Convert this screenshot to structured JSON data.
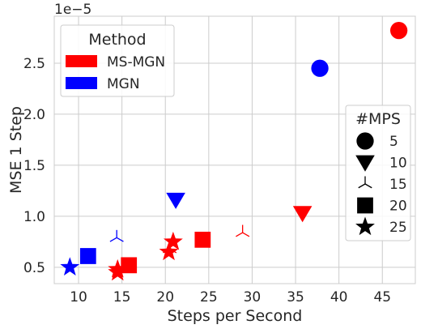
{
  "chart_data": {
    "type": "scatter",
    "xlabel": "Steps per Second",
    "ylabel": "MSE 1 Step",
    "y_multiplier_label": "1e−5",
    "xlim": [
      7.2,
      48.8
    ],
    "ylim": [
      0.34,
      2.96
    ],
    "xticks": [
      10,
      15,
      20,
      25,
      30,
      35,
      40,
      45
    ],
    "yticks": [
      0.5,
      1.0,
      1.5,
      2.0,
      2.5
    ],
    "grid": true,
    "legends": [
      {
        "title": "Method",
        "placement": "top-left",
        "entries": [
          {
            "label": "MS-MGN",
            "color": "#ff0000"
          },
          {
            "label": "MGN",
            "color": "#0000ff"
          }
        ]
      },
      {
        "title": "#MPS",
        "placement": "right",
        "entries": [
          {
            "label": "5",
            "marker": "circle"
          },
          {
            "label": "10",
            "marker": "triangle-down"
          },
          {
            "label": "15",
            "marker": "tri-down"
          },
          {
            "label": "20",
            "marker": "square"
          },
          {
            "label": "25",
            "marker": "star"
          }
        ]
      }
    ],
    "series": [
      {
        "name": "MS-MGN",
        "color": "#ff0000",
        "points": [
          {
            "x": 46.9,
            "y": 2.82,
            "mps": 5
          },
          {
            "x": 35.8,
            "y": 1.03,
            "mps": 10
          },
          {
            "x": 24.3,
            "y": 0.77,
            "mps": 20
          },
          {
            "x": 28.9,
            "y": 0.84,
            "mps": 15
          },
          {
            "x": 20.9,
            "y": 0.75,
            "mps": 25
          },
          {
            "x": 20.5,
            "y": 0.68,
            "mps": 15
          },
          {
            "x": 20.4,
            "y": 0.65,
            "mps": 25
          },
          {
            "x": 15.8,
            "y": 0.52,
            "mps": 20
          },
          {
            "x": 14.5,
            "y": 0.48,
            "mps": 25
          },
          {
            "x": 14.5,
            "y": 0.45,
            "mps": 25
          }
        ]
      },
      {
        "name": "MGN",
        "color": "#0000ff",
        "points": [
          {
            "x": 37.8,
            "y": 2.45,
            "mps": 5
          },
          {
            "x": 21.2,
            "y": 1.16,
            "mps": 10
          },
          {
            "x": 14.4,
            "y": 0.79,
            "mps": 15
          },
          {
            "x": 11.1,
            "y": 0.61,
            "mps": 20
          },
          {
            "x": 9.0,
            "y": 0.5,
            "mps": 25
          }
        ]
      }
    ]
  }
}
